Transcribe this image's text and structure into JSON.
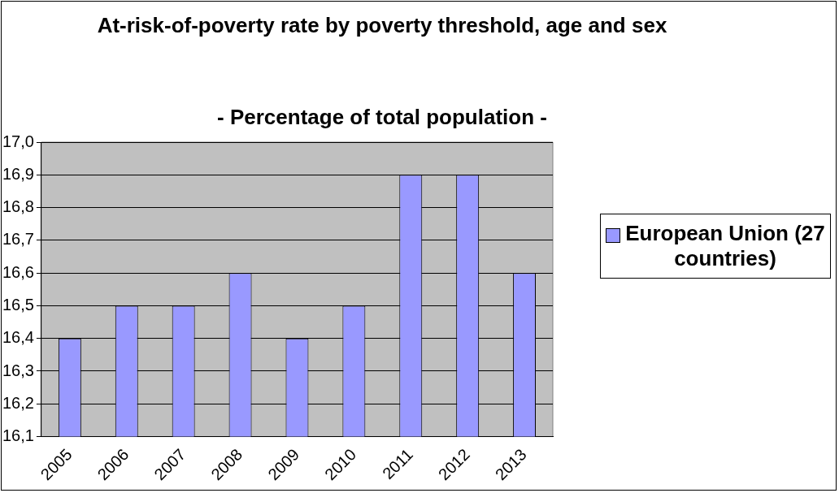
{
  "chart_data": {
    "type": "bar",
    "title": "At-risk-of-poverty rate by poverty threshold, age and sex",
    "subtitle": "- Percentage of total population -",
    "categories": [
      "2005",
      "2006",
      "2007",
      "2008",
      "2009",
      "2010",
      "2011",
      "2012",
      "2013"
    ],
    "series": [
      {
        "name": "European Union (27 countries)",
        "color": "#9999ff",
        "values": [
          16.4,
          16.5,
          16.5,
          16.6,
          16.4,
          16.5,
          16.9,
          16.9,
          16.6
        ]
      }
    ],
    "ylim": [
      16.1,
      17.0
    ],
    "yticks": [
      {
        "value": 16.1,
        "label": "16,1"
      },
      {
        "value": 16.2,
        "label": "16,2"
      },
      {
        "value": 16.3,
        "label": "16,3"
      },
      {
        "value": 16.4,
        "label": "16,4"
      },
      {
        "value": 16.5,
        "label": "16,5"
      },
      {
        "value": 16.6,
        "label": "16,6"
      },
      {
        "value": 16.7,
        "label": "16,7"
      },
      {
        "value": 16.8,
        "label": "16,8"
      },
      {
        "value": 16.9,
        "label": "16,9"
      },
      {
        "value": 17.0,
        "label": "17,0"
      }
    ],
    "grid": "y",
    "legend": "right"
  }
}
